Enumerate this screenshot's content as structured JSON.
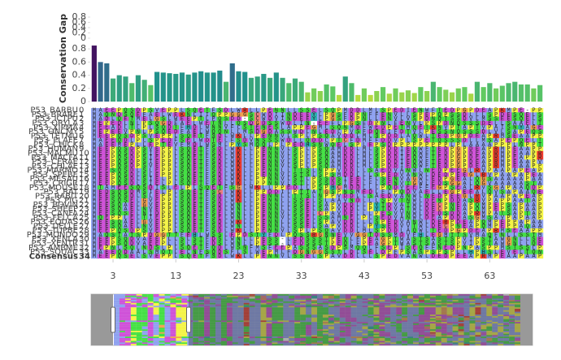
{
  "chart_data": {
    "type": "alignment",
    "ylabel": "Conservation Gap",
    "values": [
      0.85,
      0.6,
      0.58,
      0.35,
      0.4,
      0.38,
      0.28,
      0.4,
      0.33,
      0.25,
      0.45,
      0.44,
      0.43,
      0.42,
      0.44,
      0.41,
      0.44,
      0.46,
      0.44,
      0.44,
      0.47,
      0.3,
      0.58,
      0.46,
      0.45,
      0.36,
      0.38,
      0.42,
      0.36,
      0.44,
      0.36,
      0.28,
      0.35,
      0.3,
      0.14,
      0.2,
      0.16,
      0.26,
      0.23,
      0.1,
      0.38,
      0.28,
      0.1,
      0.2,
      0.1,
      0.16,
      0.22,
      0.12,
      0.2,
      0.14,
      0.17,
      0.13,
      0.22,
      0.16,
      0.3,
      0.22,
      0.18,
      0.14,
      0.2,
      0.22,
      0.12,
      0.3,
      0.22,
      0.28,
      0.2,
      0.24,
      0.28,
      0.3,
      0.26,
      0.26,
      0.2,
      0.25
    ],
    "ylim": [
      0,
      0.9
    ],
    "yticks": [
      0,
      0.2,
      0.4,
      0.6,
      0.8
    ],
    "y2lim": [
      0,
      0.8
    ],
    "y2ticks": [
      0,
      0.2,
      0.4,
      0.6,
      0.8
    ],
    "colorscale": [
      [
        0,
        "#440154"
      ],
      [
        0.25,
        "#3b528b"
      ],
      [
        0.5,
        "#21918c"
      ],
      [
        0.75,
        "#5ec962"
      ],
      [
        1,
        "#fde725"
      ]
    ],
    "reversescale": true,
    "xlim": [
      -0.5,
      71.5
    ],
    "xticks": [
      3,
      13,
      23,
      33,
      43,
      53,
      63
    ],
    "names": [
      "P53_BARBU",
      "P53_BRARE",
      "P53_ICTPU",
      "P53_ORYLA",
      "P53_XIPMA",
      "P53_ONCMY",
      "P53_TETMU",
      "P53_PLAFE",
      "P53_CHICK",
      "P53_HUMAN",
      "P53_MACMU",
      "P53_MACFA",
      "P53_CERAE",
      "P53_CHLAE",
      "P53_MARMO",
      "P53_SPEBE",
      "P53_MESAU",
      "P53_CRIGR",
      "P53_MOUSE",
      "P53_RAT",
      "P53_RABIT",
      "P53_PIG",
      "P53_BOVIN",
      "P53_SHEEP",
      "P53_CANFA",
      "P53_FELCA",
      "P53_EQUAS",
      "P53_DELLE",
      "P53_TUPBE",
      "P53_MONDO",
      "P53_XENLA",
      "P53_XENTR",
      "P53_AMBME",
      "P53_SQUAC",
      "Consensus"
    ],
    "row_ids": [
      0,
      1,
      2,
      3,
      4,
      5,
      6,
      7,
      8,
      9,
      10,
      11,
      12,
      13,
      14,
      15,
      16,
      17,
      18,
      19,
      20,
      21,
      22,
      23,
      24,
      25,
      26,
      27,
      28,
      29,
      30,
      31,
      32,
      33,
      34
    ],
    "sequences": [
      "MAEEPQSDPSVEPPLSQETFSDLWRLLPENNLLSSELSQPMDDLMLSPEDIENWFTEDPGPDEAPKMPE-PP",
      "MAQNDSQEFAELWEKNLIIQPPGGGSCWDIINDEEYLPGSFDPNFFENVLLSPEPQPSSDLLLSPDESQELS",
      "MADLQETMELGSLWEEPTLFQSDD-SCWDVINDEEYLPGSFDPNLLENVLVSPDNQTSSDVLMSSEESQELS",
      "MEPEDLNLPSQGDFAELWETNLLQSDGDSSWDLIN-EEFLPGSFDPNLFENVLPSPDNQSSSDELLSAAELT",
      "MEEADLTLPLSQDTFHDLWNNVFLSTENESLAPPEGMLSQNMDFWEDPETMQETKNVPTAPTVPAISNYAGE",
      "MEPEEVPNLPSQEDFAELWQQNLLMSDGDASSWDLNLEDLPVSFDQEIFDTVLPESSNQSSSDLVLSAPEQS",
      "MEEPQSDPSVEPPLSQETFSDLWKLLPENNVLSPLPSQAVDDLMLSPDDLAQWLTEDPGPDEAPRMSEAAPP",
      "MAEEQDLPLSPEDFSELWDTELFSDVNSSSWDLLQDDLPTCFDMFFDDVPLSPETQSSSDLLMSAPEPQELT",
      "MAEEMEPLLEPTEVFMDLWSMLPYSMQQLPLPEDHSNWQELSPLEPSDPPPPPPPPPLPLAAAAPPPLNPPT",
      "MEEPQSDPSVEPPLSQETFSDLWKLLPENNVLSPLPSQAMDDLMLSPDDIEQWFTEDPGPDEAPRMPEAAPP",
      "MEEPQSDPSIEPPLSQETFSDLWKLLPENNVLSPLPSQAMDDLMLSPDDIEQWFTEDPGPDEAPRMPEAAPR",
      "MEEPQSDPSIEPPLSQETFSDLWKLLPENNVLSPLPSQAMDDLMLSPDDIEQWFTEDPGPDEAPRMPEAPPR",
      "MEEPQSDPSIEPPLSQETFSDLWKLLPENNVLSPLPSQAMDDLMLSPDDIEQWFTEDPGPDEAPRMPEAAPV",
      "MEEPQSDPSVEPPLSQETFSDLWKLLPENNVLSPLPSQAMDDLMLSPDDIEQWFTEDPGPDEAPRMPEAAPP",
      "MEESQSDLSLEPPLSQETFSDLWKLLPENNLLTTSLNPPVDDLLSAEDVANWLNEDPEEGLRVPAAPAPEAP",
      "MEEPQSDLSLEPPLSQETFSDLWKLLPENNVLSTSLSPSMDDLLLSPEDVANWLDEDPEEGLRVPAAPAPEA",
      "MEEPQSDLSIELPLSQETFSDLWKLLPPNNVLSTLPSSDSIEELFLSENVAGWLEDPGEALQGSAAAAAPAA",
      "MEEPQSDLSIELPLSQETFSDLWKLLPPNNVLSTLPSSDSIEELFLSENVTGWLEDSGGALQGVAAAAASTA",
      "MTAMEESQSDISLELPLSQETFSGLWKLLPPEDILPSPHCMDDLLLPQDVEEFFEGPSEALRVSGAPAAQDP",
      "MEDSQSDMSIELPLSQETFSCLWKLLPPDDILPTTATGSPNSMEDLFLPQDVAELLEGPEEALQVSAPAAQE",
      "MEESQSDLSLEPPLSQETFSDLWKLLPENNLLTTSLNPPVDDLLSAEDVANWLNEDPEEGLRVPAAPAPEAP",
      "MEESQSELGVEPPLSQETFSDLWKLLPENNLLSSELSLAAVNDLLLSPVTNWLDENPDDASRVPAPPAATAP",
      "MEESQAELGVEPPLSQETFSDLWNLLPENNLLSSELSAPVDDLLPYTDVATWLDECPNEAPQMPEPSAPAAP",
      "MEESQAELNVEPPLSQETFSDLWNLLPENNLLSSELSAPVDDLLPYTDVATWLDECPNEAPQMPEPSAPAAP",
      "MEESQSELNIDPPLSQETFSELWNLLPENNVLSSELCPAVDELLLPESVVNWLDEDSDDAPRMPATSAPTAP",
      "MQEPPLELTIEPPLSQETFSELWNLLPENNVLSSELSSAMNELPLSEDVANWLDEAPDDASGMSAVPAPAAP",
      "MEESQAELGVEPPLSQETFSDLWKLLPENNLLSSELSPAVDDLLLSPEDVANWLDERPDEAPQMPEPPAPAA",
      "MEESQAELNVEPPLSQETFSDLWNLLPENNLLSSELSAPVDDLLPYSEDVVTWLDECPNEAPQMPEPPAQAA",
      "MEEPQSDPSVEPPLSQETFSDLWKLLPENNVLSPLPSQAVDDLMLSPDDLAQWLTEDPGPDEAPRMSEAAPP",
      "MAQSTATSPDGGTTFEHLWSSLEPDSTYFDLPQSSRGNNEVVGGTDSSMDVFHLEGMTTSVMAQFNLLSSTM",
      "MEEPSQDVAEEPLLSLSTFDSLWNLLPESS-LEDSSSTPEQLFPEAGPTWASTSASTSPVIPSTAWGNLLSE",
      "MEEPSQDVAEEPLLSLSTFDSLWNLLPESS-LEDSSSTPEQLFPEAGPTWASTSASTSPVIPSTAWGNLLQE",
      "MEPNLSQLNDSLPLSQETFQDLWSNFMSFEEPASSSASDPSMQQLFSEPISEQFFNEDPNPASPPMSTSSLP",
      "MAEEQDAALSMQTLELNFSQDSFLSLWEPMLFDGNGGSSTLDLSELDPFPSASPSPSPLLHPHSLEVELTQN",
      "MEEPQSELSVEPPLSQETFSDLWKLLPENNVLSSELSPAVDDLLLSPEDVANWLDEDPEEAPRMPEAAPAAP"
    ],
    "residue_colors": {
      "A": "#8fa2f0",
      "I": "#8fa2f0",
      "L": "#8fa2f0",
      "M": "#8fa2f0",
      "F": "#8fa2f0",
      "W": "#8fa2f0",
      "V": "#8fa2f0",
      "K": "#ee3a2c",
      "R": "#ee3a2c",
      "E": "#cf52d8",
      "D": "#cf52d8",
      "N": "#44e044",
      "Q": "#44e044",
      "S": "#44e044",
      "T": "#44e044",
      "C": "#f08080",
      "G": "#f0a050",
      "P": "#f4f446",
      "H": "#2ab0b0",
      "Y": "#2ab0b0",
      "-": "#ffffff"
    }
  }
}
